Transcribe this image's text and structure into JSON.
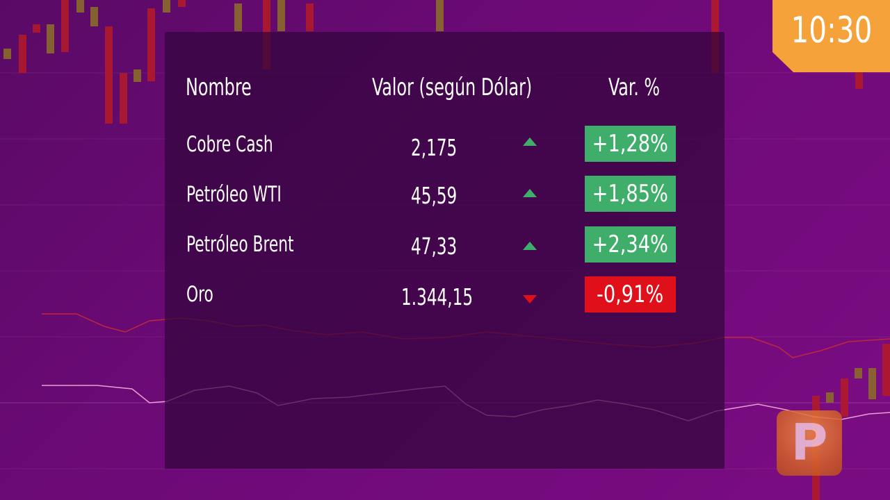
{
  "table": {
    "headers": {
      "name": "Nombre",
      "value": "Valor (según Dólar)",
      "change": "Var. %"
    },
    "rows": [
      {
        "name": "Cobre Cash",
        "value": "2,175",
        "direction": "up",
        "change": "+1,28%"
      },
      {
        "name": "Petróleo WTI",
        "value": "45,59",
        "direction": "up",
        "change": "+1,85%"
      },
      {
        "name": "Petróleo Brent",
        "value": "47,33",
        "direction": "up",
        "change": "+2,34%"
      },
      {
        "name": "Oro",
        "value": "1.344,15",
        "direction": "down",
        "change": "-0,91%"
      }
    ]
  },
  "clock": {
    "time": "10:30"
  },
  "colors": {
    "up": "#3fae6a",
    "down": "#e0101a",
    "clock_bg": "#f5a23a",
    "panel": "#32063c"
  },
  "icons": {
    "up": "triangle-up-icon",
    "down": "triangle-down-icon",
    "logo": "channel-logo-p-icon"
  }
}
